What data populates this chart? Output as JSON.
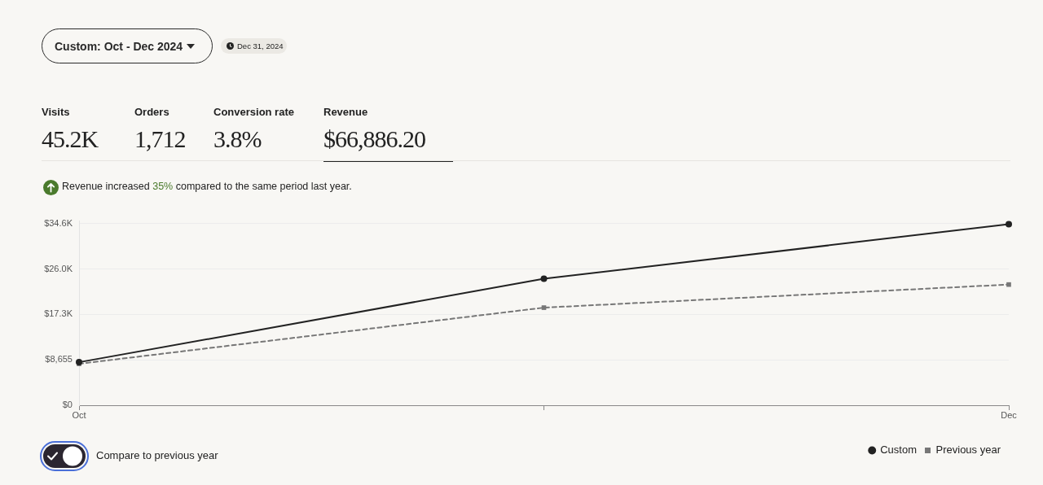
{
  "chart_data": {
    "type": "line",
    "annotations": [
      "Custom: Oct - Dec 2024",
      "Dec 31, 2024",
      "Visits",
      "45.2K",
      "Orders",
      "1,712",
      "Conversion rate",
      "3.8%",
      "Revenue",
      "$66,886.20",
      "Revenue increased 35% compared to the same period last year.",
      "Compare to previous year"
    ],
    "categories": [
      "Oct",
      null,
      "Dec"
    ],
    "series": [
      {
        "name": "Custom",
        "color": "#222222",
        "values": [
          8200,
          24100,
          34500
        ],
        "marker": "circle",
        "line_style": "solid"
      },
      {
        "name": "Previous year",
        "color": "#777777",
        "values": [
          7900,
          18600,
          23000
        ],
        "marker": "square",
        "line_style": "dashed"
      }
    ],
    "ylim": [
      0,
      35200
    ],
    "yticks": [
      {
        "value": 0,
        "label": "$0"
      },
      {
        "value": 8655,
        "label": "$8,655"
      },
      {
        "value": 17310,
        "label": "$17.3K"
      },
      {
        "value": 25965,
        "label": "$26.0K"
      },
      {
        "value": 34620,
        "label": "$34.6K"
      }
    ],
    "grid": "y",
    "legend": "bottom right"
  }
}
